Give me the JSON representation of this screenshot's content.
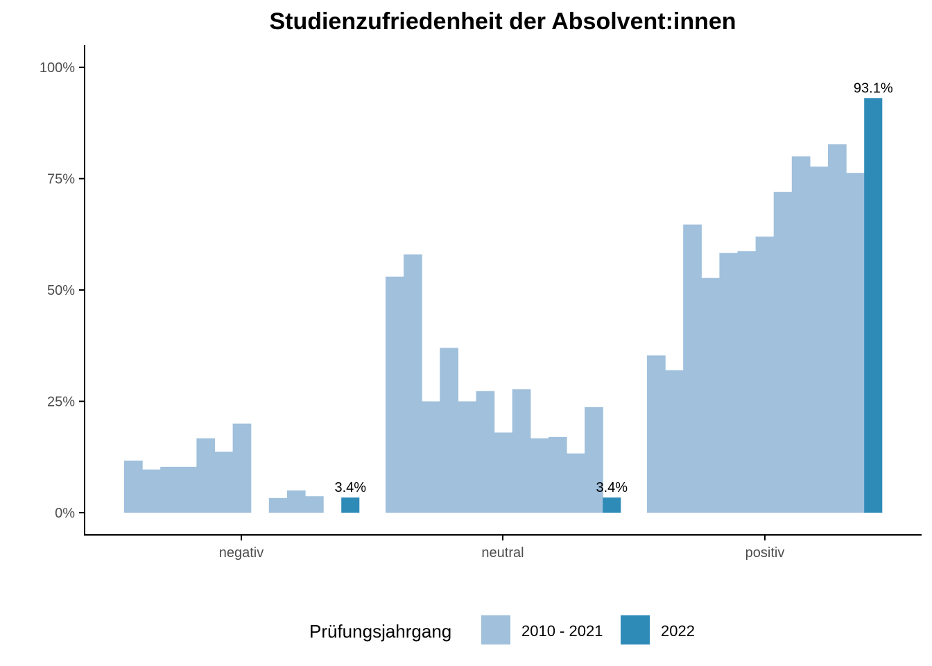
{
  "chart_data": {
    "type": "bar",
    "title": "Studienzufriedenheit der Absolvent:innen",
    "xlabel": "",
    "ylabel": "",
    "ylim": [
      0,
      1.05
    ],
    "categories": [
      "negativ",
      "neutral",
      "positiv"
    ],
    "y_ticks": [
      {
        "value": 0,
        "label": "0%"
      },
      {
        "value": 0.25,
        "label": "25%"
      },
      {
        "value": 0.5,
        "label": "50%"
      },
      {
        "value": 0.75,
        "label": "75%"
      },
      {
        "value": 1.0,
        "label": "100%"
      }
    ],
    "series": [
      {
        "name": "2010 - 2021",
        "color": "#a0c0dc",
        "values": {
          "negativ": [
            0.117,
            0.097,
            0.103,
            0.103,
            0.167,
            0.137,
            0.2,
            null,
            0.033,
            0.05,
            0.037,
            null
          ],
          "neutral": [
            0.53,
            0.58,
            0.25,
            0.37,
            0.25,
            0.273,
            0.18,
            0.277,
            0.167,
            0.17,
            0.133,
            0.237
          ],
          "positiv": [
            0.353,
            0.32,
            0.647,
            0.527,
            0.583,
            0.587,
            0.62,
            0.72,
            0.8,
            0.777,
            0.827,
            0.763
          ]
        }
      },
      {
        "name": "2022",
        "color": "#2e8bb8",
        "values": {
          "negativ": 0.034,
          "neutral": 0.034,
          "positiv": 0.931
        }
      }
    ],
    "data_labels": {
      "negativ": "3.4%",
      "neutral": "3.4%",
      "positiv": "93.1%"
    },
    "legend": {
      "title": "Prüfungsjahrgang",
      "position": "bottom"
    },
    "grid": false
  }
}
